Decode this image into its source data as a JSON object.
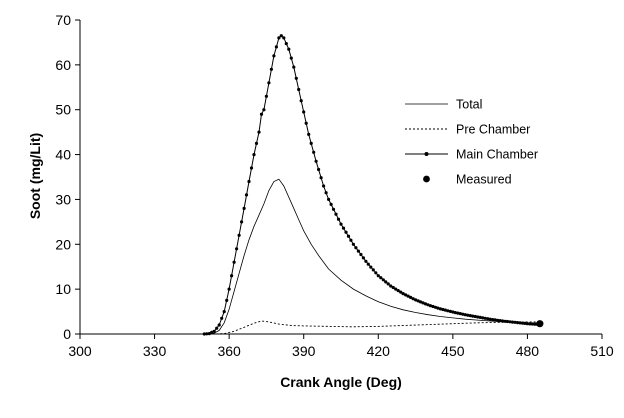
{
  "chart_data": {
    "type": "line",
    "title": "",
    "xlabel": "Crank Angle (Deg)",
    "ylabel": "Soot (mg/Lit)",
    "xlim": [
      300,
      510
    ],
    "ylim": [
      0,
      70
    ],
    "x_ticks": [
      "300",
      "330",
      "360",
      "390",
      "420",
      "450",
      "480",
      "510"
    ],
    "y_ticks": [
      "0",
      "10",
      "20",
      "30",
      "40",
      "50",
      "60",
      "70"
    ],
    "grid": false,
    "legend_position": "right",
    "series": [
      {
        "name": "Total",
        "style": "solid-thin",
        "x": [
          350,
          352,
          354,
          356,
          358,
          360,
          362,
          364,
          366,
          368,
          370,
          372,
          374,
          376,
          378,
          380,
          382,
          384,
          386,
          388,
          390,
          393,
          396,
          400,
          405,
          410,
          415,
          420,
          425,
          430,
          435,
          440,
          445,
          450,
          455,
          460,
          465,
          470,
          475,
          480,
          485
        ],
        "y": [
          0,
          0,
          0.2,
          0.8,
          2.5,
          5.5,
          9.5,
          13.5,
          17.5,
          21,
          24,
          26.5,
          29,
          32,
          34,
          34.5,
          33,
          30.5,
          28,
          25.5,
          23,
          20,
          17.5,
          14.5,
          12,
          10,
          8.5,
          7.2,
          6.2,
          5.4,
          4.8,
          4.3,
          3.9,
          3.6,
          3.3,
          3.1,
          2.9,
          2.7,
          2.6,
          2.5,
          2.4
        ]
      },
      {
        "name": "Pre Chamber",
        "style": "dashed",
        "x": [
          350,
          354,
          358,
          362,
          366,
          370,
          373,
          376,
          380,
          385,
          390,
          400,
          410,
          420,
          430,
          440,
          450,
          460,
          470,
          480,
          485
        ],
        "y": [
          0,
          0,
          0.1,
          0.6,
          1.5,
          2.4,
          2.9,
          2.7,
          2.2,
          1.9,
          1.8,
          1.7,
          1.6,
          1.7,
          1.9,
          2.1,
          2.3,
          2.5,
          2.6,
          2.7,
          2.7
        ]
      },
      {
        "name": "Main Chamber",
        "style": "solid-markers",
        "x": [
          350,
          352,
          354,
          356,
          358,
          360,
          362,
          364,
          366,
          368,
          370,
          372,
          373,
          374,
          376,
          378,
          380,
          381,
          382,
          384,
          386,
          388,
          390,
          392,
          395,
          398,
          400,
          405,
          410,
          415,
          420,
          425,
          430,
          435,
          440,
          445,
          450,
          455,
          460,
          465,
          470,
          475,
          480,
          485
        ],
        "y": [
          0,
          0.1,
          0.6,
          2,
          5,
          10,
          16,
          22,
          28,
          34,
          40,
          45,
          49,
          50,
          56,
          62,
          66,
          66.5,
          66,
          63.5,
          59.5,
          54.5,
          49.5,
          44.5,
          38.5,
          33,
          30,
          24.5,
          20,
          16.2,
          13,
          10.7,
          9,
          7.6,
          6.5,
          5.6,
          4.9,
          4.3,
          3.8,
          3.3,
          2.9,
          2.6,
          2.3,
          2.1
        ]
      },
      {
        "name": "Measured",
        "style": "marker-only",
        "x": [
          485
        ],
        "y": [
          2.3
        ]
      }
    ]
  }
}
